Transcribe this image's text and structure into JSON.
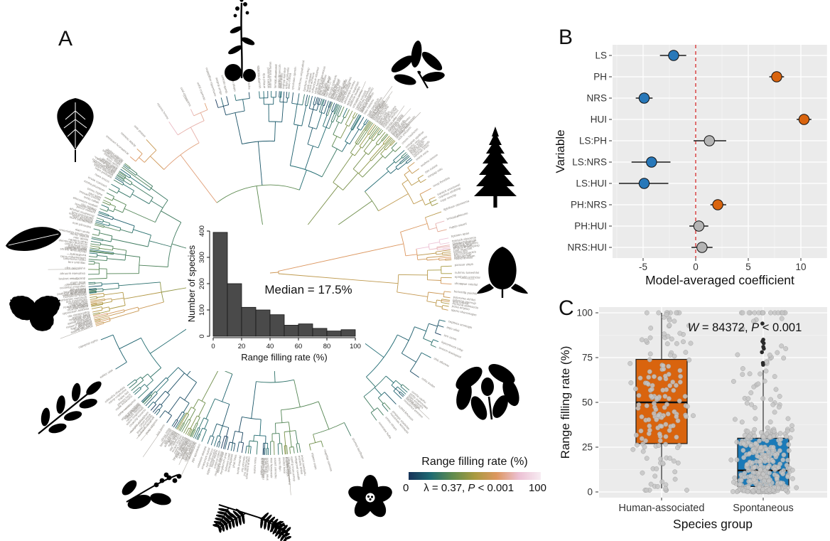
{
  "panel_labels": {
    "a": "A",
    "b": "B",
    "c": "C"
  },
  "panel_a": {
    "tree": {
      "type": "circular-phylogeny",
      "description": "Circular phylogenetic tree of tree species, branches colored by range filling rate, tiny gray species tip labels around the ring",
      "tip_label_color": "#86827d"
    },
    "tree_legend": {
      "title": "Range filling rate (%)",
      "min_label": "0",
      "max_label": "100",
      "stat_parts": [
        {
          "text": "λ = 0.37, ",
          "italic": false
        },
        {
          "text": "P",
          "italic": true
        },
        {
          "text": " < 0.001",
          "italic": false
        }
      ],
      "gradient_colors": [
        "#173359",
        "#1e6a72",
        "#5f8b4e",
        "#a89a40",
        "#dd9760",
        "#ecc0d4",
        "#f7ecf2"
      ]
    },
    "silhouettes": [
      "herb-plant",
      "broadleaf-branch",
      "poplar-leaf",
      "conifer-tree",
      "elliptic-leaf",
      "bud",
      "oak-leaves",
      "compound-leaf",
      "magnolia-branch",
      "berry-branch",
      "five-petal-flower",
      "fern-leaf"
    ]
  },
  "chart_data": [
    {
      "id": "inset-histogram",
      "type": "bar",
      "annotation": "Median = 17.5%",
      "bin_start": 0,
      "bin_width": 10,
      "values": [
        395,
        200,
        110,
        100,
        82,
        42,
        47,
        30,
        20,
        25
      ],
      "xlabel": "Range filling rate (%)",
      "ylabel": "Number of species",
      "xticks": [
        0,
        20,
        40,
        60,
        80,
        100
      ],
      "yticks": [
        0,
        100,
        200,
        300,
        400
      ],
      "ylim": [
        0,
        400
      ],
      "bar_color": "#4a4a4a",
      "legend_position": "none",
      "grid": false
    },
    {
      "id": "model-coefficients",
      "type": "scatter",
      "xlabel": "Model-averaged coefficient",
      "ylabel": "Variable",
      "categories": [
        "LS",
        "PH",
        "NRS",
        "HUI",
        "LS:PH",
        "LS:NRS",
        "LS:HUI",
        "PH:NRS",
        "PH:HUI",
        "NRS:HUI"
      ],
      "estimates": [
        -2.1,
        7.7,
        -4.9,
        10.3,
        1.3,
        -4.2,
        -4.9,
        2.1,
        0.3,
        0.6
      ],
      "ci_low": [
        -3.4,
        7.0,
        -5.7,
        9.6,
        -0.2,
        -6.1,
        -7.3,
        1.4,
        -0.6,
        -0.4
      ],
      "ci_high": [
        -0.9,
        8.4,
        -4.1,
        11.0,
        2.9,
        -2.4,
        -2.6,
        2.9,
        1.2,
        1.6
      ],
      "point_color_keys": [
        "blue",
        "orange",
        "blue",
        "orange",
        "gray",
        "blue",
        "blue",
        "orange",
        "gray",
        "gray"
      ],
      "colors": {
        "blue": "#2878b9",
        "orange": "#d9640e",
        "gray": "#b4b4b4"
      },
      "zero_line": {
        "x": 0,
        "color": "#d42a2a",
        "style": "dashed"
      },
      "xticks": [
        -5,
        0,
        5,
        10
      ],
      "xlim": [
        -7.85,
        12.5
      ],
      "panel_bg": "#ebebeb",
      "grid": true,
      "legend_position": "none"
    },
    {
      "id": "group-boxplot",
      "type": "boxplot",
      "xlabel": "Species group",
      "ylabel": "Range filling rate (%)",
      "annotation_parts": [
        {
          "text": "W",
          "italic": true
        },
        {
          "text": " = 84372, ",
          "italic": false
        },
        {
          "text": "P",
          "italic": true
        },
        {
          "text": " < 0.001",
          "italic": false
        }
      ],
      "categories": [
        "Human-associated",
        "Spontaneous"
      ],
      "boxes": [
        {
          "group": "Human-associated",
          "color": "#d9640e",
          "q1": 27,
          "median": 50,
          "q3": 74,
          "whisker_low": 2,
          "whisker_high": 100
        },
        {
          "group": "Spontaneous",
          "color": "#1b7ab8",
          "q1": 3,
          "median": 12,
          "q3": 30,
          "whisker_low": 0,
          "whisker_high": 68,
          "outliers": [
            71,
            72,
            78,
            80,
            81,
            83,
            84,
            85,
            94
          ]
        }
      ],
      "yticks": [
        0,
        25,
        50,
        75,
        100
      ],
      "ylim": [
        -3,
        103
      ],
      "panel_bg": "#ebebeb",
      "jitter_point_color": "#c6c6c6",
      "grid": true,
      "legend_position": "none"
    }
  ]
}
